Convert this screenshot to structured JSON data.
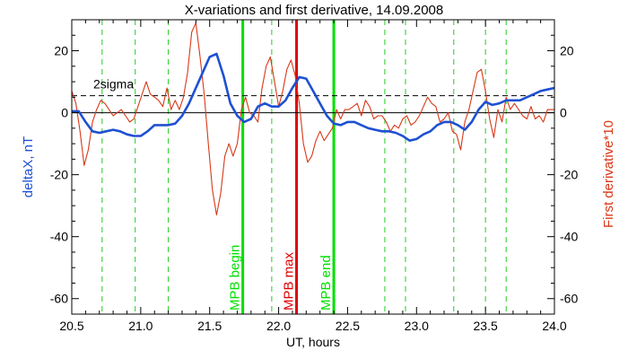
{
  "chart_data": {
    "type": "line",
    "title": "X-variations and first derivative, 14.09.2008",
    "xlabel": "UT, hours",
    "ylabel_left": "deltaX, nT",
    "ylabel_right": "First derivative*10",
    "xlim": [
      20.5,
      24.0
    ],
    "ylim": [
      -65,
      30
    ],
    "x_ticks": [
      20.5,
      21.0,
      21.5,
      22.0,
      22.5,
      23.0,
      23.5,
      24.0
    ],
    "x_tick_labels": [
      "20.5",
      "21.0",
      "21.5",
      "22.0",
      "22.5",
      "23.0",
      "23.5",
      "24.0"
    ],
    "y_ticks": [
      20,
      0,
      -20,
      -40,
      -60
    ],
    "y_tick_labels": [
      "20",
      "0",
      "-20",
      "-40",
      "-60"
    ],
    "sigma_level": 5.5,
    "sigma_label": "2sigma",
    "dashed_verticals": [
      20.72,
      20.96,
      21.2,
      21.95,
      22.77,
      22.92,
      23.27,
      23.5,
      23.65
    ],
    "markers": [
      {
        "label": "MPB begin",
        "x": 21.74,
        "color": "#00e000"
      },
      {
        "label": "MPB max",
        "x": 22.13,
        "color": "#e00000"
      },
      {
        "label": "MPB end",
        "x": 22.4,
        "color": "#00e000"
      }
    ],
    "series": [
      {
        "name": "deltaX, nT",
        "color": "#1e50d2",
        "axis": "left",
        "x": [
          20.5,
          20.55,
          20.6,
          20.65,
          20.7,
          20.75,
          20.8,
          20.85,
          20.9,
          20.95,
          21.0,
          21.05,
          21.1,
          21.15,
          21.2,
          21.25,
          21.3,
          21.35,
          21.4,
          21.45,
          21.5,
          21.55,
          21.6,
          21.65,
          21.7,
          21.75,
          21.8,
          21.85,
          21.9,
          21.95,
          22.0,
          22.05,
          22.1,
          22.15,
          22.2,
          22.25,
          22.3,
          22.35,
          22.4,
          22.45,
          22.5,
          22.55,
          22.6,
          22.65,
          22.7,
          22.75,
          22.8,
          22.85,
          22.9,
          22.95,
          23.0,
          23.05,
          23.1,
          23.15,
          23.2,
          23.25,
          23.3,
          23.35,
          23.4,
          23.45,
          23.5,
          23.55,
          23.6,
          23.65,
          23.7,
          23.75,
          23.8,
          23.85,
          23.9,
          23.95,
          24.0
        ],
        "values": [
          0.5,
          0.5,
          -3,
          -6,
          -6.5,
          -6,
          -5.5,
          -6,
          -7,
          -7.5,
          -7.5,
          -6,
          -4,
          -4,
          -4,
          -3.5,
          -1,
          3,
          8,
          13,
          18,
          19,
          12,
          3,
          -1,
          -3,
          -2,
          2,
          3,
          2,
          2,
          4,
          8,
          11.5,
          11,
          7,
          3,
          -1,
          -3.5,
          -4,
          -3,
          -3,
          -4,
          -5,
          -5.5,
          -6,
          -6,
          -6.5,
          -7.5,
          -9,
          -8.5,
          -7,
          -6,
          -4,
          -3,
          -3,
          -4,
          -5.5,
          -3,
          1,
          3.5,
          2.5,
          3,
          4,
          4,
          4,
          5,
          6,
          7,
          7.5,
          8
        ]
      },
      {
        "name": "First derivative*10",
        "color": "#d83818",
        "axis": "right",
        "x": [
          20.5,
          20.53,
          20.56,
          20.59,
          20.62,
          20.65,
          20.68,
          20.71,
          20.74,
          20.77,
          20.8,
          20.83,
          20.86,
          20.89,
          20.92,
          20.95,
          20.98,
          21.01,
          21.04,
          21.07,
          21.1,
          21.13,
          21.16,
          21.19,
          21.22,
          21.25,
          21.28,
          21.31,
          21.34,
          21.37,
          21.4,
          21.43,
          21.46,
          21.49,
          21.52,
          21.55,
          21.58,
          21.61,
          21.64,
          21.67,
          21.7,
          21.73,
          21.76,
          21.79,
          21.82,
          21.85,
          21.88,
          21.91,
          21.94,
          21.97,
          22.0,
          22.03,
          22.06,
          22.09,
          22.12,
          22.15,
          22.18,
          22.21,
          22.24,
          22.27,
          22.3,
          22.33,
          22.36,
          22.39,
          22.42,
          22.45,
          22.48,
          22.51,
          22.54,
          22.57,
          22.6,
          22.63,
          22.66,
          22.69,
          22.72,
          22.75,
          22.78,
          22.81,
          22.84,
          22.87,
          22.9,
          22.93,
          22.96,
          22.99,
          23.02,
          23.05,
          23.08,
          23.11,
          23.14,
          23.17,
          23.2,
          23.23,
          23.26,
          23.29,
          23.32,
          23.35,
          23.38,
          23.41,
          23.44,
          23.47,
          23.5,
          23.53,
          23.56,
          23.59,
          23.62,
          23.65,
          23.68,
          23.71,
          23.74,
          23.77,
          23.8,
          23.83,
          23.86,
          23.89,
          23.92,
          23.95,
          23.98,
          24.0
        ],
        "values": [
          7,
          3,
          -6,
          -17,
          -12,
          -3,
          1,
          4,
          3,
          1,
          -1,
          0,
          1,
          -1,
          -3,
          -2,
          2,
          6,
          10,
          6,
          5,
          4,
          2,
          8,
          1,
          4,
          1,
          5,
          13,
          26,
          29,
          18,
          6,
          -10,
          -25,
          -33,
          -26,
          -14,
          -10,
          -14,
          -10,
          1,
          5,
          0,
          -1,
          -3,
          8,
          15,
          18,
          10,
          2,
          7,
          14,
          17,
          12,
          3,
          -10,
          -16,
          -14,
          -9,
          -6,
          -9,
          -7,
          -5,
          1,
          -2,
          1,
          1,
          2,
          3,
          -1,
          4,
          2,
          -2,
          -1,
          -1,
          -3,
          -6,
          -4,
          -5,
          -2,
          -1,
          -4,
          -3,
          -1,
          2,
          5,
          3,
          2,
          -3,
          -2,
          0,
          -6,
          -7,
          -12,
          -3,
          1,
          7,
          13,
          14,
          7,
          -2,
          -8,
          1,
          -3,
          5,
          1,
          3,
          1,
          -1,
          -2,
          2,
          -2,
          -1,
          -3,
          1,
          1,
          1
        ]
      }
    ]
  }
}
